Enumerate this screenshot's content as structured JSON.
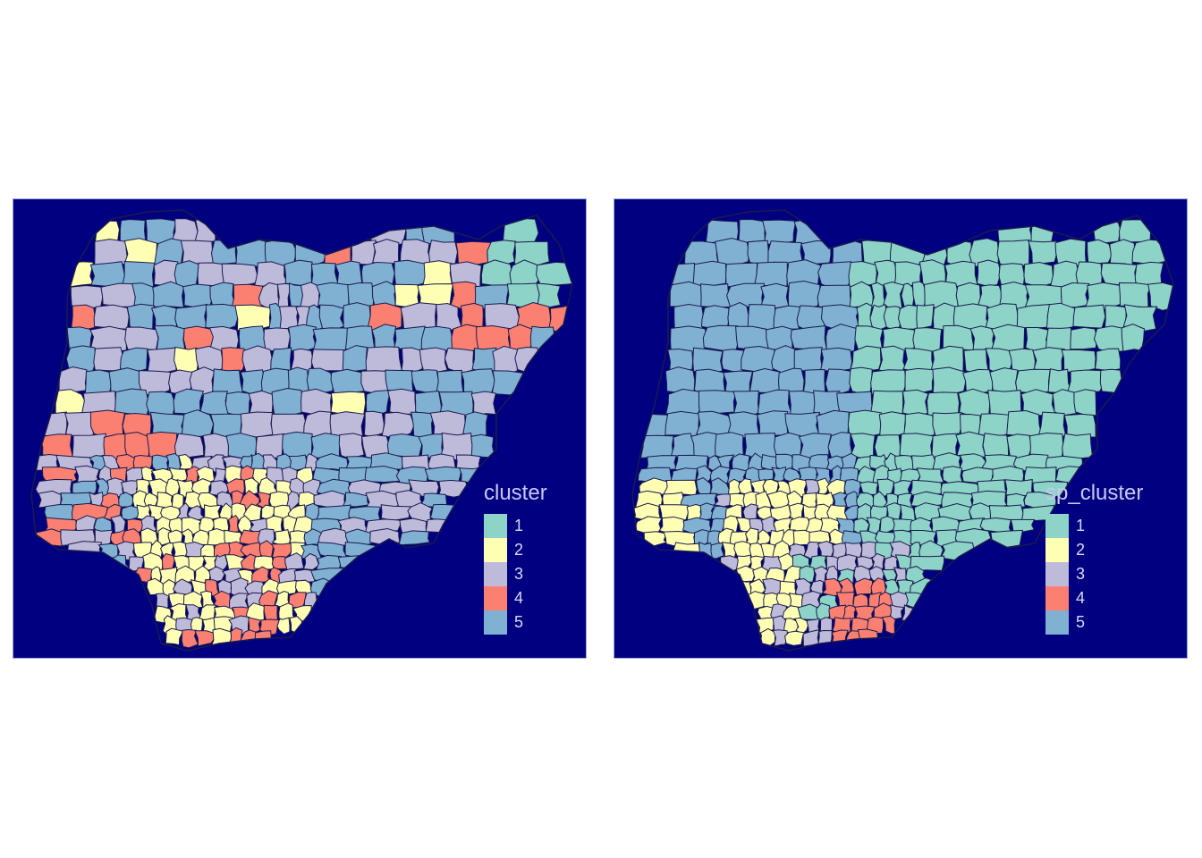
{
  "maps": [
    {
      "id": "left",
      "legend_title": "cluster",
      "legend_items": [
        {
          "label": "1",
          "color": "#8DD3C7"
        },
        {
          "label": "2",
          "color": "#FFFFB3"
        },
        {
          "label": "3",
          "color": "#BEBADA"
        },
        {
          "label": "4",
          "color": "#FB8072"
        },
        {
          "label": "5",
          "color": "#80B1D3"
        }
      ]
    },
    {
      "id": "right",
      "legend_title": "sp_cluster",
      "legend_items": [
        {
          "label": "1",
          "color": "#8DD3C7"
        },
        {
          "label": "2",
          "color": "#FFFFB3"
        },
        {
          "label": "3",
          "color": "#BEBADA"
        },
        {
          "label": "4",
          "color": "#FB8072"
        },
        {
          "label": "5",
          "color": "#80B1D3"
        }
      ]
    }
  ],
  "colors": {
    "panel_background": "#000080",
    "boundary_line": "#1a1a4e",
    "panel_border": "#9fa8da"
  }
}
